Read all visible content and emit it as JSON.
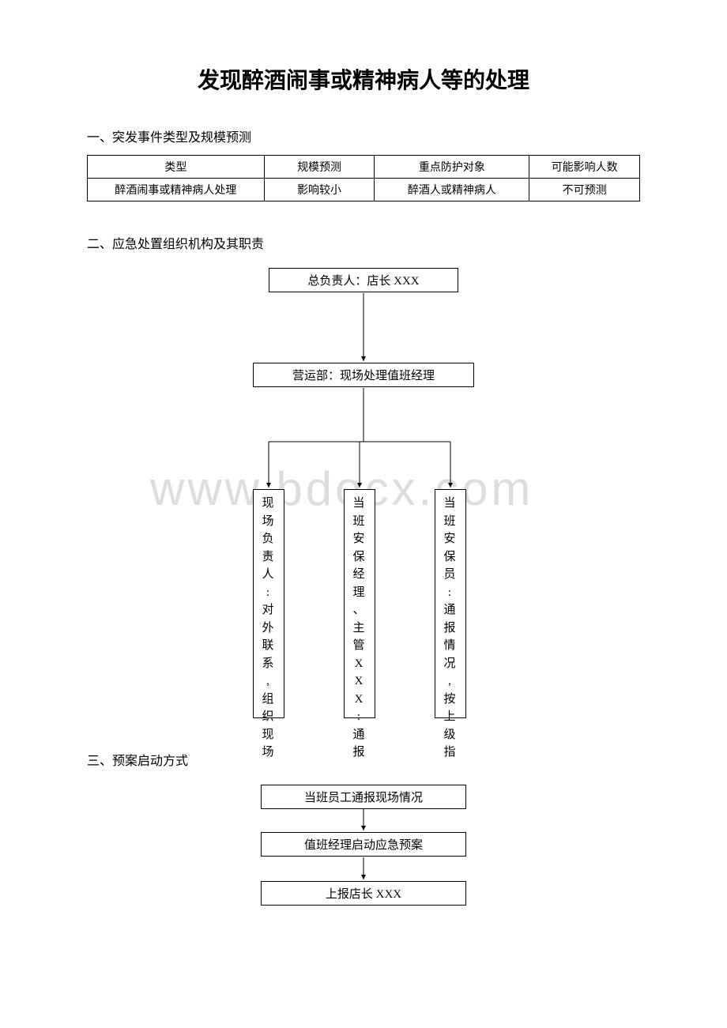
{
  "title": "发现醉酒闹事或精神病人等的处理",
  "section1": {
    "heading": "一、突发事件类型及规模预测",
    "table": {
      "columns": [
        "类型",
        "规模预测",
        "重点防护对象",
        "可能影响人数"
      ],
      "rows": [
        [
          "醉酒闹事或精神病人处理",
          "影响较小",
          "醉酒人或精神病人",
          "不可预测"
        ]
      ]
    }
  },
  "section2": {
    "heading": "二、应急处置组织机构及其职责",
    "flow": {
      "n1": "总负责人：店长 XXX",
      "n2": "营运部：现场处理值班经理",
      "c1": "现场负责人:对外联系,组织现场",
      "c2": "当班安保经理、主管XXX:通报",
      "c3": "当班安保员:通报情况,按上级指"
    }
  },
  "section3": {
    "heading": "三、预案启动方式",
    "flow": {
      "s1": "当班员工通报现场情况",
      "s2": "值班经理启动应急预案",
      "s3": "上报店长 XXX"
    }
  },
  "watermark": "www.bdocx.com",
  "style": {
    "page_bg": "#ffffff",
    "text_color": "#000000",
    "border_color": "#000000",
    "watermark_color": "#dddddd",
    "title_fontsize": 28,
    "body_fontsize": 16,
    "table_fontsize": 14,
    "node_fontsize": 15
  }
}
